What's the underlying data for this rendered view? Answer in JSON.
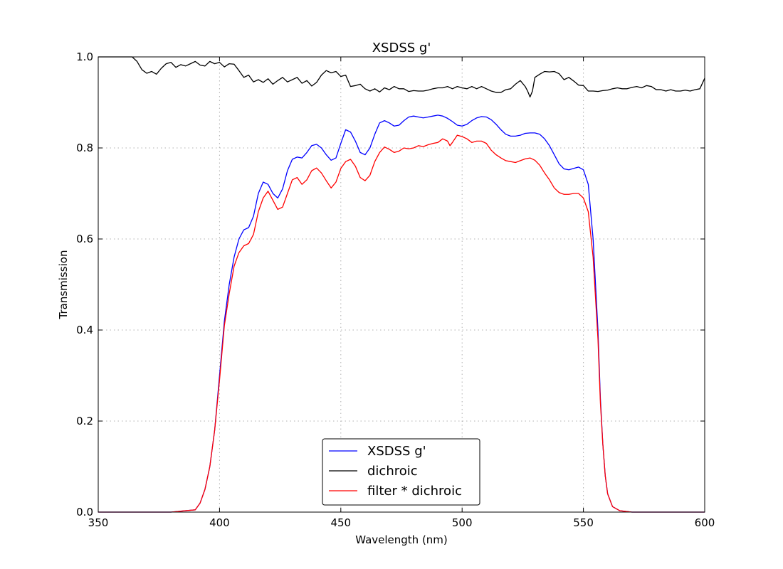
{
  "chart_data": {
    "type": "line",
    "title": "XSDSS g'",
    "xlabel": "Wavelength (nm)",
    "ylabel": "Transmission",
    "xlim": [
      350,
      600
    ],
    "ylim": [
      0.0,
      1.0
    ],
    "grid": true,
    "legend_position": "bottom-center",
    "x_ticks": [
      350,
      400,
      450,
      500,
      550,
      600
    ],
    "x_tick_labels": [
      "350",
      "400",
      "450",
      "500",
      "550",
      "600"
    ],
    "y_ticks": [
      0.0,
      0.2,
      0.4,
      0.6,
      0.8,
      1.0
    ],
    "y_tick_labels": [
      "0.0",
      "0.2",
      "0.4",
      "0.6",
      "0.8",
      "1.0"
    ],
    "series": [
      {
        "name": "XSDSS g'",
        "color": "#0000ff",
        "points": [
          [
            350,
            0.0
          ],
          [
            380,
            0.0
          ],
          [
            390,
            0.005
          ],
          [
            392,
            0.02
          ],
          [
            394,
            0.05
          ],
          [
            396,
            0.1
          ],
          [
            398,
            0.18
          ],
          [
            400,
            0.3
          ],
          [
            402,
            0.42
          ],
          [
            404,
            0.5
          ],
          [
            406,
            0.56
          ],
          [
            408,
            0.6
          ],
          [
            410,
            0.62
          ],
          [
            412,
            0.625
          ],
          [
            414,
            0.65
          ],
          [
            416,
            0.7
          ],
          [
            418,
            0.725
          ],
          [
            420,
            0.72
          ],
          [
            422,
            0.7
          ],
          [
            424,
            0.69
          ],
          [
            426,
            0.71
          ],
          [
            428,
            0.75
          ],
          [
            430,
            0.775
          ],
          [
            432,
            0.78
          ],
          [
            434,
            0.778
          ],
          [
            436,
            0.79
          ],
          [
            438,
            0.805
          ],
          [
            440,
            0.808
          ],
          [
            442,
            0.8
          ],
          [
            444,
            0.785
          ],
          [
            446,
            0.773
          ],
          [
            448,
            0.778
          ],
          [
            450,
            0.81
          ],
          [
            452,
            0.84
          ],
          [
            454,
            0.835
          ],
          [
            456,
            0.815
          ],
          [
            458,
            0.79
          ],
          [
            460,
            0.785
          ],
          [
            462,
            0.8
          ],
          [
            464,
            0.83
          ],
          [
            466,
            0.855
          ],
          [
            468,
            0.86
          ],
          [
            470,
            0.855
          ],
          [
            472,
            0.848
          ],
          [
            474,
            0.85
          ],
          [
            476,
            0.86
          ],
          [
            478,
            0.868
          ],
          [
            480,
            0.87
          ],
          [
            482,
            0.868
          ],
          [
            484,
            0.866
          ],
          [
            486,
            0.868
          ],
          [
            488,
            0.87
          ],
          [
            490,
            0.872
          ],
          [
            492,
            0.87
          ],
          [
            494,
            0.865
          ],
          [
            496,
            0.858
          ],
          [
            498,
            0.85
          ],
          [
            500,
            0.848
          ],
          [
            502,
            0.852
          ],
          [
            504,
            0.86
          ],
          [
            506,
            0.866
          ],
          [
            508,
            0.869
          ],
          [
            510,
            0.868
          ],
          [
            512,
            0.862
          ],
          [
            514,
            0.852
          ],
          [
            516,
            0.84
          ],
          [
            518,
            0.83
          ],
          [
            520,
            0.826
          ],
          [
            522,
            0.826
          ],
          [
            524,
            0.828
          ],
          [
            526,
            0.832
          ],
          [
            528,
            0.833
          ],
          [
            530,
            0.833
          ],
          [
            532,
            0.83
          ],
          [
            534,
            0.82
          ],
          [
            536,
            0.805
          ],
          [
            538,
            0.785
          ],
          [
            540,
            0.765
          ],
          [
            542,
            0.754
          ],
          [
            544,
            0.752
          ],
          [
            546,
            0.755
          ],
          [
            548,
            0.758
          ],
          [
            550,
            0.752
          ],
          [
            552,
            0.72
          ],
          [
            554,
            0.6
          ],
          [
            556,
            0.4
          ],
          [
            557,
            0.25
          ],
          [
            558,
            0.15
          ],
          [
            559,
            0.08
          ],
          [
            560,
            0.04
          ],
          [
            562,
            0.012
          ],
          [
            565,
            0.003
          ],
          [
            570,
            0.0
          ],
          [
            600,
            0.0
          ]
        ]
      },
      {
        "name": "dichroic",
        "color": "#000000",
        "points": [
          [
            350,
            1.0
          ],
          [
            364,
            1.0
          ],
          [
            366,
            0.99
          ],
          [
            368,
            0.972
          ],
          [
            370,
            0.964
          ],
          [
            372,
            0.968
          ],
          [
            374,
            0.962
          ],
          [
            376,
            0.975
          ],
          [
            378,
            0.985
          ],
          [
            380,
            0.988
          ],
          [
            382,
            0.977
          ],
          [
            384,
            0.983
          ],
          [
            386,
            0.98
          ],
          [
            388,
            0.985
          ],
          [
            390,
            0.99
          ],
          [
            392,
            0.982
          ],
          [
            394,
            0.98
          ],
          [
            396,
            0.99
          ],
          [
            398,
            0.985
          ],
          [
            400,
            0.988
          ],
          [
            402,
            0.978
          ],
          [
            404,
            0.985
          ],
          [
            406,
            0.984
          ],
          [
            408,
            0.97
          ],
          [
            410,
            0.955
          ],
          [
            412,
            0.96
          ],
          [
            414,
            0.945
          ],
          [
            416,
            0.95
          ],
          [
            418,
            0.944
          ],
          [
            420,
            0.952
          ],
          [
            422,
            0.94
          ],
          [
            424,
            0.948
          ],
          [
            426,
            0.955
          ],
          [
            428,
            0.945
          ],
          [
            430,
            0.95
          ],
          [
            432,
            0.955
          ],
          [
            434,
            0.942
          ],
          [
            436,
            0.948
          ],
          [
            438,
            0.936
          ],
          [
            440,
            0.944
          ],
          [
            442,
            0.96
          ],
          [
            444,
            0.97
          ],
          [
            446,
            0.965
          ],
          [
            448,
            0.968
          ],
          [
            450,
            0.957
          ],
          [
            452,
            0.96
          ],
          [
            454,
            0.935
          ],
          [
            456,
            0.937
          ],
          [
            458,
            0.94
          ],
          [
            460,
            0.93
          ],
          [
            462,
            0.925
          ],
          [
            464,
            0.93
          ],
          [
            466,
            0.923
          ],
          [
            468,
            0.932
          ],
          [
            470,
            0.928
          ],
          [
            472,
            0.935
          ],
          [
            474,
            0.93
          ],
          [
            476,
            0.93
          ],
          [
            478,
            0.924
          ],
          [
            480,
            0.926
          ],
          [
            482,
            0.925
          ],
          [
            484,
            0.925
          ],
          [
            486,
            0.927
          ],
          [
            488,
            0.93
          ],
          [
            490,
            0.932
          ],
          [
            492,
            0.932
          ],
          [
            494,
            0.935
          ],
          [
            496,
            0.93
          ],
          [
            498,
            0.935
          ],
          [
            500,
            0.932
          ],
          [
            502,
            0.93
          ],
          [
            504,
            0.935
          ],
          [
            506,
            0.93
          ],
          [
            508,
            0.935
          ],
          [
            510,
            0.93
          ],
          [
            512,
            0.925
          ],
          [
            514,
            0.922
          ],
          [
            516,
            0.922
          ],
          [
            518,
            0.928
          ],
          [
            520,
            0.93
          ],
          [
            522,
            0.94
          ],
          [
            524,
            0.948
          ],
          [
            526,
            0.935
          ],
          [
            527,
            0.925
          ],
          [
            528,
            0.912
          ],
          [
            529,
            0.925
          ],
          [
            530,
            0.955
          ],
          [
            532,
            0.962
          ],
          [
            534,
            0.968
          ],
          [
            536,
            0.967
          ],
          [
            538,
            0.968
          ],
          [
            540,
            0.963
          ],
          [
            542,
            0.95
          ],
          [
            544,
            0.955
          ],
          [
            546,
            0.947
          ],
          [
            548,
            0.938
          ],
          [
            550,
            0.937
          ],
          [
            552,
            0.925
          ],
          [
            554,
            0.925
          ],
          [
            556,
            0.924
          ],
          [
            558,
            0.926
          ],
          [
            560,
            0.927
          ],
          [
            562,
            0.93
          ],
          [
            564,
            0.932
          ],
          [
            566,
            0.93
          ],
          [
            568,
            0.93
          ],
          [
            570,
            0.933
          ],
          [
            572,
            0.935
          ],
          [
            574,
            0.932
          ],
          [
            576,
            0.937
          ],
          [
            578,
            0.935
          ],
          [
            580,
            0.928
          ],
          [
            582,
            0.928
          ],
          [
            584,
            0.925
          ],
          [
            586,
            0.928
          ],
          [
            588,
            0.925
          ],
          [
            590,
            0.925
          ],
          [
            592,
            0.927
          ],
          [
            594,
            0.925
          ],
          [
            596,
            0.928
          ],
          [
            598,
            0.93
          ],
          [
            600,
            0.953
          ]
        ]
      },
      {
        "name": "filter * dichroic",
        "color": "#ff0000",
        "points": [
          [
            350,
            0.0
          ],
          [
            380,
            0.0
          ],
          [
            390,
            0.005
          ],
          [
            392,
            0.02
          ],
          [
            394,
            0.05
          ],
          [
            396,
            0.1
          ],
          [
            398,
            0.18
          ],
          [
            400,
            0.29
          ],
          [
            402,
            0.41
          ],
          [
            404,
            0.48
          ],
          [
            406,
            0.54
          ],
          [
            408,
            0.57
          ],
          [
            410,
            0.585
          ],
          [
            412,
            0.59
          ],
          [
            414,
            0.61
          ],
          [
            416,
            0.66
          ],
          [
            418,
            0.69
          ],
          [
            420,
            0.705
          ],
          [
            422,
            0.685
          ],
          [
            424,
            0.665
          ],
          [
            426,
            0.67
          ],
          [
            428,
            0.7
          ],
          [
            430,
            0.73
          ],
          [
            432,
            0.735
          ],
          [
            434,
            0.72
          ],
          [
            436,
            0.73
          ],
          [
            438,
            0.75
          ],
          [
            440,
            0.756
          ],
          [
            442,
            0.745
          ],
          [
            444,
            0.728
          ],
          [
            446,
            0.712
          ],
          [
            448,
            0.725
          ],
          [
            450,
            0.755
          ],
          [
            452,
            0.77
          ],
          [
            454,
            0.775
          ],
          [
            456,
            0.76
          ],
          [
            458,
            0.735
          ],
          [
            460,
            0.728
          ],
          [
            462,
            0.74
          ],
          [
            464,
            0.77
          ],
          [
            466,
            0.79
          ],
          [
            468,
            0.802
          ],
          [
            470,
            0.797
          ],
          [
            472,
            0.79
          ],
          [
            474,
            0.793
          ],
          [
            476,
            0.8
          ],
          [
            478,
            0.798
          ],
          [
            480,
            0.8
          ],
          [
            482,
            0.805
          ],
          [
            484,
            0.803
          ],
          [
            486,
            0.807
          ],
          [
            488,
            0.81
          ],
          [
            490,
            0.812
          ],
          [
            492,
            0.82
          ],
          [
            494,
            0.815
          ],
          [
            495,
            0.805
          ],
          [
            496,
            0.812
          ],
          [
            498,
            0.828
          ],
          [
            500,
            0.825
          ],
          [
            502,
            0.82
          ],
          [
            504,
            0.812
          ],
          [
            506,
            0.815
          ],
          [
            508,
            0.815
          ],
          [
            510,
            0.81
          ],
          [
            512,
            0.795
          ],
          [
            514,
            0.785
          ],
          [
            516,
            0.778
          ],
          [
            518,
            0.772
          ],
          [
            520,
            0.77
          ],
          [
            522,
            0.768
          ],
          [
            524,
            0.772
          ],
          [
            526,
            0.776
          ],
          [
            528,
            0.778
          ],
          [
            530,
            0.773
          ],
          [
            532,
            0.762
          ],
          [
            534,
            0.745
          ],
          [
            536,
            0.73
          ],
          [
            538,
            0.712
          ],
          [
            540,
            0.702
          ],
          [
            542,
            0.698
          ],
          [
            544,
            0.698
          ],
          [
            546,
            0.7
          ],
          [
            548,
            0.7
          ],
          [
            550,
            0.69
          ],
          [
            552,
            0.66
          ],
          [
            554,
            0.56
          ],
          [
            556,
            0.38
          ],
          [
            557,
            0.24
          ],
          [
            558,
            0.15
          ],
          [
            559,
            0.08
          ],
          [
            560,
            0.04
          ],
          [
            562,
            0.012
          ],
          [
            565,
            0.003
          ],
          [
            570,
            0.0
          ],
          [
            600,
            0.0
          ]
        ]
      }
    ]
  }
}
